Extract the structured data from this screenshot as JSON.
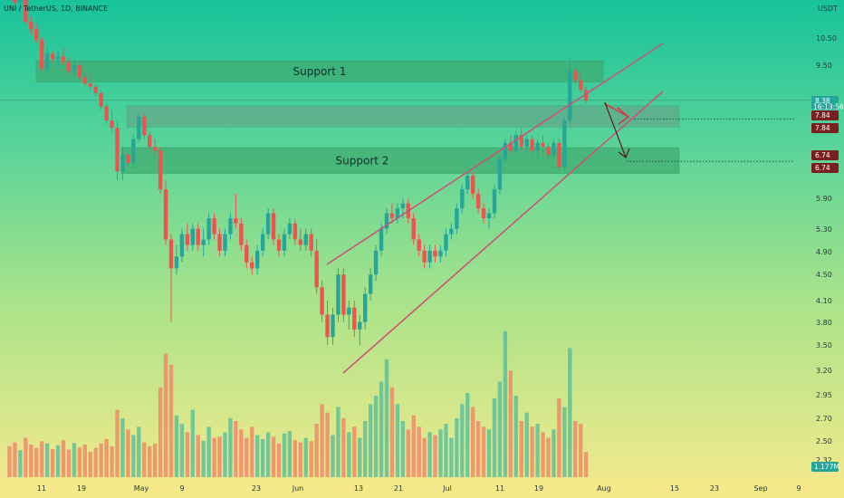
{
  "symbol": "UNI / TetherUS, 1D, BINANCE",
  "currency": "USDT",
  "colors": {
    "up": "#26a69a",
    "down": "#ef5350",
    "zone": "#3faa6e",
    "channel": "#c9547a",
    "arrow_red": "#e0313c",
    "arrow_dark": "#5a1e1e"
  },
  "chart_data": {
    "type": "candlestick",
    "y_axis": {
      "ticks": [
        "10.50",
        "9.50",
        "8.38",
        "7.84",
        "6.74",
        "5.90",
        "5.30",
        "4.90",
        "4.50",
        "4.10",
        "3.80",
        "3.50",
        "3.20",
        "2.95",
        "2.70",
        "2.50",
        "2.32"
      ]
    },
    "x_axis": {
      "ticks": [
        "11",
        "19",
        "May",
        "9",
        "23",
        "Jun",
        "13",
        "21",
        "Jul",
        "11",
        "19",
        "Aug",
        "15",
        "23",
        "Sep",
        "9"
      ]
    },
    "price_tags": [
      {
        "value": "8.38",
        "sub": "16:13:56",
        "color": "#26a69a"
      },
      {
        "value": "7.84",
        "color": "#7a1f1f"
      },
      {
        "value": "7.84",
        "color": "#7a1f1f"
      },
      {
        "value": "6.74",
        "color": "#7a1f1f"
      },
      {
        "value": "6.74",
        "color": "#7a1f1f"
      }
    ],
    "volume_tag": "1.177M",
    "zones": [
      {
        "label": "Support 1",
        "top": 9.65,
        "bottom": 8.95
      },
      {
        "label": "",
        "top": 8.22,
        "bottom": 7.62
      },
      {
        "label": "Support 2",
        "top": 7.08,
        "bottom": 6.45
      }
    ],
    "candles": [
      [
        12.6,
        12.9,
        12.3,
        12.5
      ],
      [
        12.5,
        12.7,
        11.8,
        11.9
      ],
      [
        11.9,
        12.3,
        11.6,
        12.1
      ],
      [
        12.1,
        12.2,
        11.0,
        11.1
      ],
      [
        11.1,
        11.3,
        10.6,
        10.8
      ],
      [
        10.8,
        11.0,
        10.3,
        10.4
      ],
      [
        10.4,
        10.5,
        9.3,
        9.4
      ],
      [
        9.4,
        10.1,
        9.2,
        9.9
      ],
      [
        9.9,
        10.0,
        9.6,
        9.7
      ],
      [
        9.7,
        10.0,
        9.4,
        9.8
      ],
      [
        9.8,
        10.1,
        9.5,
        9.6
      ],
      [
        9.6,
        9.8,
        9.2,
        9.3
      ],
      [
        9.3,
        9.7,
        9.1,
        9.5
      ],
      [
        9.5,
        9.6,
        9.0,
        9.1
      ],
      [
        9.1,
        9.3,
        8.8,
        8.9
      ],
      [
        8.9,
        9.2,
        8.7,
        8.8
      ],
      [
        8.8,
        8.9,
        8.5,
        8.6
      ],
      [
        8.6,
        8.7,
        8.1,
        8.2
      ],
      [
        8.2,
        8.3,
        7.7,
        7.8
      ],
      [
        7.8,
        8.1,
        7.5,
        7.6
      ],
      [
        7.6,
        7.8,
        6.3,
        6.5
      ],
      [
        6.5,
        7.1,
        6.3,
        6.9
      ],
      [
        6.9,
        7.0,
        6.6,
        6.7
      ],
      [
        6.7,
        7.4,
        6.6,
        7.3
      ],
      [
        7.3,
        8.0,
        7.2,
        7.9
      ],
      [
        7.9,
        8.0,
        7.3,
        7.4
      ],
      [
        7.4,
        7.5,
        7.0,
        7.1
      ],
      [
        7.1,
        7.3,
        6.9,
        7.0
      ],
      [
        7.0,
        7.1,
        6.0,
        6.1
      ],
      [
        6.1,
        6.3,
        5.0,
        5.1
      ],
      [
        5.1,
        5.2,
        3.8,
        4.6
      ],
      [
        4.6,
        5.0,
        4.5,
        4.8
      ],
      [
        4.8,
        5.3,
        4.7,
        5.2
      ],
      [
        5.2,
        5.4,
        4.9,
        5.0
      ],
      [
        5.0,
        5.4,
        4.9,
        5.3
      ],
      [
        5.3,
        5.4,
        4.9,
        5.0
      ],
      [
        5.0,
        5.3,
        4.8,
        5.1
      ],
      [
        5.1,
        5.6,
        5.0,
        5.5
      ],
      [
        5.5,
        5.6,
        5.1,
        5.2
      ],
      [
        5.2,
        5.3,
        4.8,
        4.9
      ],
      [
        4.9,
        5.3,
        4.8,
        5.2
      ],
      [
        5.2,
        5.6,
        5.1,
        5.5
      ],
      [
        5.5,
        6.0,
        5.3,
        5.4
      ],
      [
        5.4,
        5.5,
        4.9,
        5.0
      ],
      [
        5.0,
        5.1,
        4.6,
        4.7
      ],
      [
        4.7,
        4.8,
        4.5,
        4.6
      ],
      [
        4.6,
        5.0,
        4.5,
        4.9
      ],
      [
        4.9,
        5.3,
        4.8,
        5.2
      ],
      [
        5.2,
        5.7,
        5.1,
        5.6
      ],
      [
        5.6,
        5.7,
        5.0,
        5.1
      ],
      [
        5.1,
        5.2,
        4.8,
        4.9
      ],
      [
        4.9,
        5.3,
        4.8,
        5.2
      ],
      [
        5.2,
        5.5,
        5.1,
        5.4
      ],
      [
        5.4,
        5.5,
        5.0,
        5.1
      ],
      [
        5.1,
        5.3,
        4.9,
        5.0
      ],
      [
        5.0,
        5.3,
        4.9,
        5.2
      ],
      [
        5.2,
        5.3,
        4.8,
        4.9
      ],
      [
        4.9,
        5.1,
        4.2,
        4.3
      ],
      [
        4.3,
        4.4,
        3.8,
        3.9
      ],
      [
        3.9,
        4.1,
        3.5,
        3.6
      ],
      [
        3.6,
        4.0,
        3.5,
        3.9
      ],
      [
        3.9,
        4.6,
        3.8,
        4.5
      ],
      [
        4.5,
        4.6,
        3.8,
        3.9
      ],
      [
        3.9,
        4.1,
        3.7,
        4.0
      ],
      [
        4.0,
        4.1,
        3.6,
        3.7
      ],
      [
        3.7,
        3.9,
        3.5,
        3.8
      ],
      [
        3.8,
        4.3,
        3.7,
        4.2
      ],
      [
        4.2,
        4.6,
        4.1,
        4.5
      ],
      [
        4.5,
        5.0,
        4.4,
        4.9
      ],
      [
        4.9,
        5.4,
        4.8,
        5.3
      ],
      [
        5.3,
        5.7,
        5.2,
        5.6
      ],
      [
        5.6,
        5.8,
        5.4,
        5.5
      ],
      [
        5.5,
        5.8,
        5.4,
        5.7
      ],
      [
        5.7,
        5.9,
        5.5,
        5.8
      ],
      [
        5.8,
        5.9,
        5.4,
        5.5
      ],
      [
        5.5,
        5.6,
        5.0,
        5.1
      ],
      [
        5.1,
        5.2,
        4.8,
        4.9
      ],
      [
        4.9,
        5.0,
        4.6,
        4.7
      ],
      [
        4.7,
        5.0,
        4.6,
        4.9
      ],
      [
        4.9,
        5.0,
        4.7,
        4.8
      ],
      [
        4.8,
        5.0,
        4.7,
        4.9
      ],
      [
        4.9,
        5.3,
        4.8,
        5.2
      ],
      [
        5.2,
        5.4,
        5.1,
        5.3
      ],
      [
        5.3,
        5.8,
        5.2,
        5.7
      ],
      [
        5.7,
        6.2,
        5.6,
        6.1
      ],
      [
        6.1,
        6.5,
        6.0,
        6.4
      ],
      [
        6.4,
        6.5,
        5.9,
        6.0
      ],
      [
        6.0,
        6.1,
        5.6,
        5.7
      ],
      [
        5.7,
        5.8,
        5.4,
        5.5
      ],
      [
        5.5,
        5.7,
        5.3,
        5.6
      ],
      [
        5.6,
        6.2,
        5.5,
        6.1
      ],
      [
        6.1,
        6.9,
        6.0,
        6.8
      ],
      [
        6.8,
        7.3,
        6.7,
        7.2
      ],
      [
        7.2,
        7.4,
        6.9,
        7.0
      ],
      [
        7.0,
        7.5,
        6.9,
        7.4
      ],
      [
        7.4,
        7.6,
        7.0,
        7.1
      ],
      [
        7.1,
        7.4,
        6.9,
        7.3
      ],
      [
        7.3,
        7.4,
        6.9,
        7.0
      ],
      [
        7.0,
        7.3,
        6.8,
        7.2
      ],
      [
        7.2,
        7.4,
        6.9,
        7.1
      ],
      [
        7.1,
        7.2,
        6.8,
        6.9
      ],
      [
        6.9,
        7.3,
        6.8,
        7.2
      ],
      [
        7.2,
        7.3,
        6.5,
        6.6
      ],
      [
        6.6,
        7.9,
        6.5,
        7.8
      ],
      [
        7.8,
        9.8,
        7.7,
        9.3
      ],
      [
        9.3,
        9.4,
        8.9,
        9.0
      ],
      [
        9.0,
        9.3,
        8.6,
        8.7
      ],
      [
        8.7,
        8.8,
        8.3,
        8.38
      ]
    ],
    "volumes": [
      0.55,
      0.62,
      0.48,
      0.7,
      0.58,
      0.52,
      0.64,
      0.6,
      0.5,
      0.57,
      0.66,
      0.49,
      0.61,
      0.53,
      0.58,
      0.45,
      0.52,
      0.6,
      0.68,
      0.55,
      1.2,
      1.05,
      0.85,
      0.75,
      0.9,
      0.62,
      0.55,
      0.6,
      1.6,
      2.2,
      2.0,
      1.1,
      0.95,
      0.8,
      1.2,
      0.75,
      0.65,
      0.9,
      0.7,
      0.72,
      0.8,
      1.05,
      1.0,
      0.85,
      0.7,
      0.9,
      0.75,
      0.68,
      0.8,
      0.72,
      0.6,
      0.78,
      0.82,
      0.66,
      0.62,
      0.7,
      0.64,
      0.95,
      1.3,
      1.15,
      0.75,
      1.25,
      1.05,
      0.8,
      0.9,
      0.7,
      1.0,
      1.3,
      1.45,
      1.7,
      2.1,
      1.6,
      1.3,
      1.0,
      0.85,
      1.1,
      0.9,
      0.7,
      0.8,
      0.75,
      0.85,
      0.95,
      0.7,
      1.05,
      1.3,
      1.5,
      1.25,
      1.0,
      0.9,
      0.85,
      1.4,
      1.7,
      2.6,
      1.9,
      1.45,
      1.0,
      1.15,
      0.9,
      0.95,
      0.8,
      0.7,
      0.85,
      1.4,
      1.25,
      2.3,
      1.0,
      0.95,
      0.45
    ]
  }
}
